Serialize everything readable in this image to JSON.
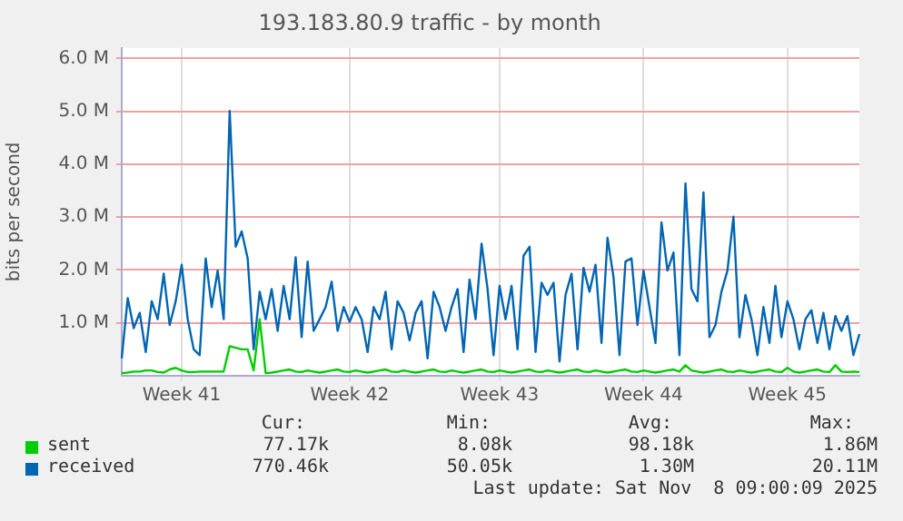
{
  "chart_data": {
    "type": "line",
    "title": "193.183.80.9 traffic - by month",
    "ylabel": "bits per second",
    "ylim": [
      0,
      6.2
    ],
    "categories": [
      null,
      null,
      null,
      null,
      null,
      null,
      null,
      null,
      null,
      null,
      "Week 41",
      null,
      null,
      null,
      null,
      null,
      null,
      null,
      null,
      null,
      null,
      null,
      null,
      null,
      null,
      null,
      null,
      null,
      null,
      null,
      null,
      null,
      null,
      null,
      null,
      null,
      null,
      null,
      "Week 42",
      null,
      null,
      null,
      null,
      null,
      null,
      null,
      null,
      null,
      null,
      null,
      null,
      null,
      null,
      null,
      null,
      null,
      null,
      null,
      null,
      null,
      null,
      null,
      null,
      "Week 43",
      null,
      null,
      null,
      null,
      null,
      null,
      null,
      null,
      null,
      null,
      null,
      null,
      null,
      null,
      null,
      null,
      null,
      null,
      null,
      null,
      null,
      null,
      null,
      "Week 44",
      null,
      null,
      null,
      null,
      null,
      null,
      null,
      null,
      null,
      null,
      null,
      null,
      null,
      null,
      null,
      null,
      null,
      null,
      null,
      null,
      null,
      null,
      null,
      "Week 45",
      null,
      null,
      null,
      null,
      null,
      null,
      null,
      null,
      null,
      null,
      null,
      null
    ],
    "yticks": [
      {
        "value": 1,
        "label": "1.0 M"
      },
      {
        "value": 2,
        "label": "2.0 M"
      },
      {
        "value": 3,
        "label": "3.0 M"
      },
      {
        "value": 4,
        "label": "4.0 M"
      },
      {
        "value": 5,
        "label": "5.0 M"
      },
      {
        "value": 6,
        "label": "6.0 M"
      }
    ],
    "grid": true,
    "legend": "bottom",
    "marker": "none",
    "line_style": "solid",
    "series": [
      {
        "name": "sent",
        "color": "#00cc00",
        "values": [
          0.05,
          0.06,
          0.08,
          0.08,
          0.1,
          0.1,
          0.07,
          0.06,
          0.12,
          0.15,
          0.1,
          0.07,
          0.07,
          0.08,
          0.08,
          0.08,
          0.08,
          0.08,
          0.56,
          0.53,
          0.5,
          0.5,
          0.1,
          1.07,
          0.05,
          0.06,
          0.08,
          0.1,
          0.12,
          0.08,
          0.07,
          0.1,
          0.08,
          0.06,
          0.08,
          0.1,
          0.12,
          0.08,
          0.07,
          0.1,
          0.08,
          0.06,
          0.08,
          0.1,
          0.12,
          0.08,
          0.07,
          0.1,
          0.08,
          0.06,
          0.08,
          0.1,
          0.12,
          0.08,
          0.07,
          0.1,
          0.08,
          0.06,
          0.08,
          0.1,
          0.12,
          0.08,
          0.07,
          0.1,
          0.08,
          0.06,
          0.08,
          0.1,
          0.12,
          0.08,
          0.07,
          0.1,
          0.08,
          0.06,
          0.08,
          0.1,
          0.12,
          0.08,
          0.07,
          0.1,
          0.08,
          0.06,
          0.08,
          0.1,
          0.12,
          0.08,
          0.07,
          0.1,
          0.08,
          0.06,
          0.08,
          0.1,
          0.12,
          0.08,
          0.2,
          0.1,
          0.08,
          0.06,
          0.08,
          0.1,
          0.12,
          0.08,
          0.07,
          0.1,
          0.08,
          0.06,
          0.08,
          0.1,
          0.12,
          0.08,
          0.07,
          0.15,
          0.08,
          0.06,
          0.08,
          0.1,
          0.12,
          0.08,
          0.07,
          0.2,
          0.08,
          0.07,
          0.08,
          0.07
        ]
      },
      {
        "name": "received",
        "color": "#0066b3",
        "values": [
          0.33,
          1.47,
          0.9,
          1.19,
          0.45,
          1.41,
          1.07,
          1.93,
          0.96,
          1.41,
          2.1,
          1.07,
          0.5,
          0.39,
          2.22,
          1.3,
          1.99,
          1.07,
          5.01,
          2.44,
          2.73,
          2.22,
          0.5,
          1.59,
          1.07,
          1.64,
          0.85,
          1.7,
          1.07,
          2.24,
          0.73,
          2.16,
          0.85,
          1.07,
          1.3,
          1.78,
          0.85,
          1.3,
          1.02,
          1.3,
          1.07,
          0.45,
          1.3,
          1.07,
          1.59,
          0.5,
          1.41,
          1.19,
          0.67,
          1.19,
          1.41,
          0.33,
          1.59,
          1.3,
          0.85,
          1.3,
          1.64,
          0.45,
          1.82,
          1.07,
          2.5,
          1.64,
          0.39,
          1.7,
          1.07,
          1.7,
          0.5,
          2.27,
          2.44,
          0.45,
          1.76,
          1.53,
          1.76,
          0.27,
          1.53,
          1.93,
          0.5,
          2.04,
          1.59,
          2.1,
          0.62,
          2.61,
          1.87,
          0.39,
          2.16,
          2.22,
          0.96,
          1.99,
          1.3,
          0.62,
          2.9,
          1.99,
          2.33,
          0.39,
          3.64,
          1.64,
          1.41,
          3.47,
          0.73,
          0.96,
          1.59,
          1.99,
          3.01,
          0.73,
          1.53,
          1.07,
          0.39,
          1.3,
          0.62,
          1.7,
          0.73,
          1.41,
          1.07,
          0.5,
          1.07,
          1.24,
          0.62,
          1.19,
          0.5,
          1.13,
          0.85,
          1.13,
          0.39,
          0.79
        ]
      }
    ],
    "annotations": [
      "Cur:",
      "Min:",
      "Avg:",
      "Max:",
      "77.17k",
      "8.08k",
      "98.18k",
      "1.86M",
      "770.46k",
      "50.05k",
      "1.30M",
      "20.11M",
      "Last update: Sat Nov  8 09:00:09 2025"
    ]
  }
}
